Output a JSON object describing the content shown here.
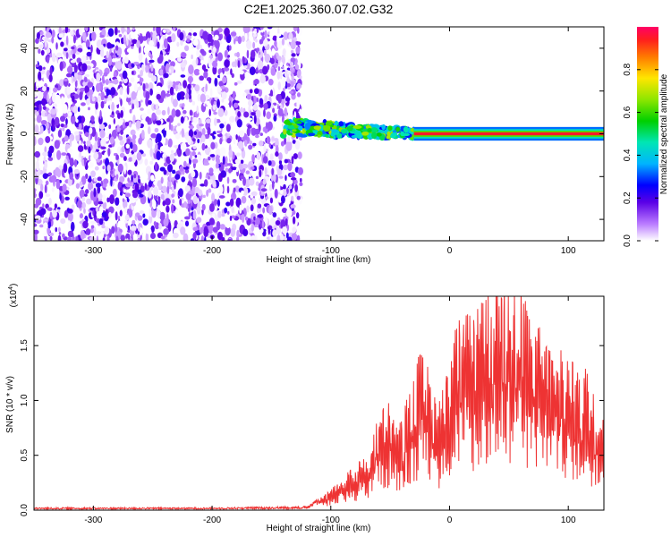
{
  "title": "C2E1.2025.360.07.02.G32",
  "chart_data": [
    {
      "type": "heatmap",
      "title": "",
      "xlabel": "Height of straight line (km)",
      "ylabel": "Frequency (Hz)",
      "xlim": [
        -350,
        130
      ],
      "ylim": [
        -50,
        50
      ],
      "xticks": [
        -300,
        -200,
        -100,
        0,
        100
      ],
      "yticks": [
        -40,
        -20,
        0,
        20,
        40
      ],
      "regions": [
        {
          "name": "noise",
          "x": [
            -350,
            -125
          ],
          "y": [
            -50,
            50
          ],
          "level": 0.1
        },
        {
          "name": "dispersed-signal",
          "x": [
            -140,
            -30
          ],
          "y": [
            -8,
            15
          ],
          "level": 0.5
        },
        {
          "name": "narrow-line",
          "x": [
            -30,
            130
          ],
          "y": [
            -2,
            2
          ],
          "level": 0.95
        }
      ],
      "colorbar": {
        "label": "Normalized spectral amplitude",
        "range": [
          0,
          1
        ],
        "ticks": [
          "0.0",
          "0.2",
          "0.4",
          "0.6",
          "0.8"
        ]
      }
    },
    {
      "type": "line",
      "title": "",
      "xlabel": "Height of straight line (km)",
      "ylabel": "SNR (10 * v/v)",
      "multiplier": "(x10",
      "multiplier_exp": "4",
      "xlim": [
        -350,
        130
      ],
      "ylim": [
        0,
        1.95
      ],
      "xticks": [
        -300,
        -200,
        -100,
        0,
        100
      ],
      "yticks": [
        "0.0",
        "0.5",
        "1.0",
        "1.5"
      ],
      "series": [
        {
          "name": "SNR",
          "color": "#ee3333",
          "x": [
            -350,
            -300,
            -200,
            -120,
            -105,
            -90,
            -80,
            -70,
            -60,
            -50,
            -45,
            -40,
            -35,
            -30,
            -25,
            -20,
            -10,
            -5,
            0,
            5,
            10,
            15,
            20,
            30,
            40,
            50,
            60,
            70,
            80,
            90,
            100,
            110,
            115,
            120,
            130
          ],
          "values": [
            0.02,
            0.02,
            0.02,
            0.03,
            0.12,
            0.22,
            0.33,
            0.38,
            0.68,
            0.78,
            0.6,
            0.65,
            0.85,
            1.0,
            1.12,
            1.08,
            0.75,
            0.9,
            1.05,
            1.28,
            1.4,
            1.45,
            1.35,
            1.55,
            1.62,
            1.68,
            1.55,
            1.38,
            1.25,
            1.15,
            1.1,
            0.95,
            1.05,
            0.85,
            0.8
          ]
        }
      ]
    }
  ]
}
